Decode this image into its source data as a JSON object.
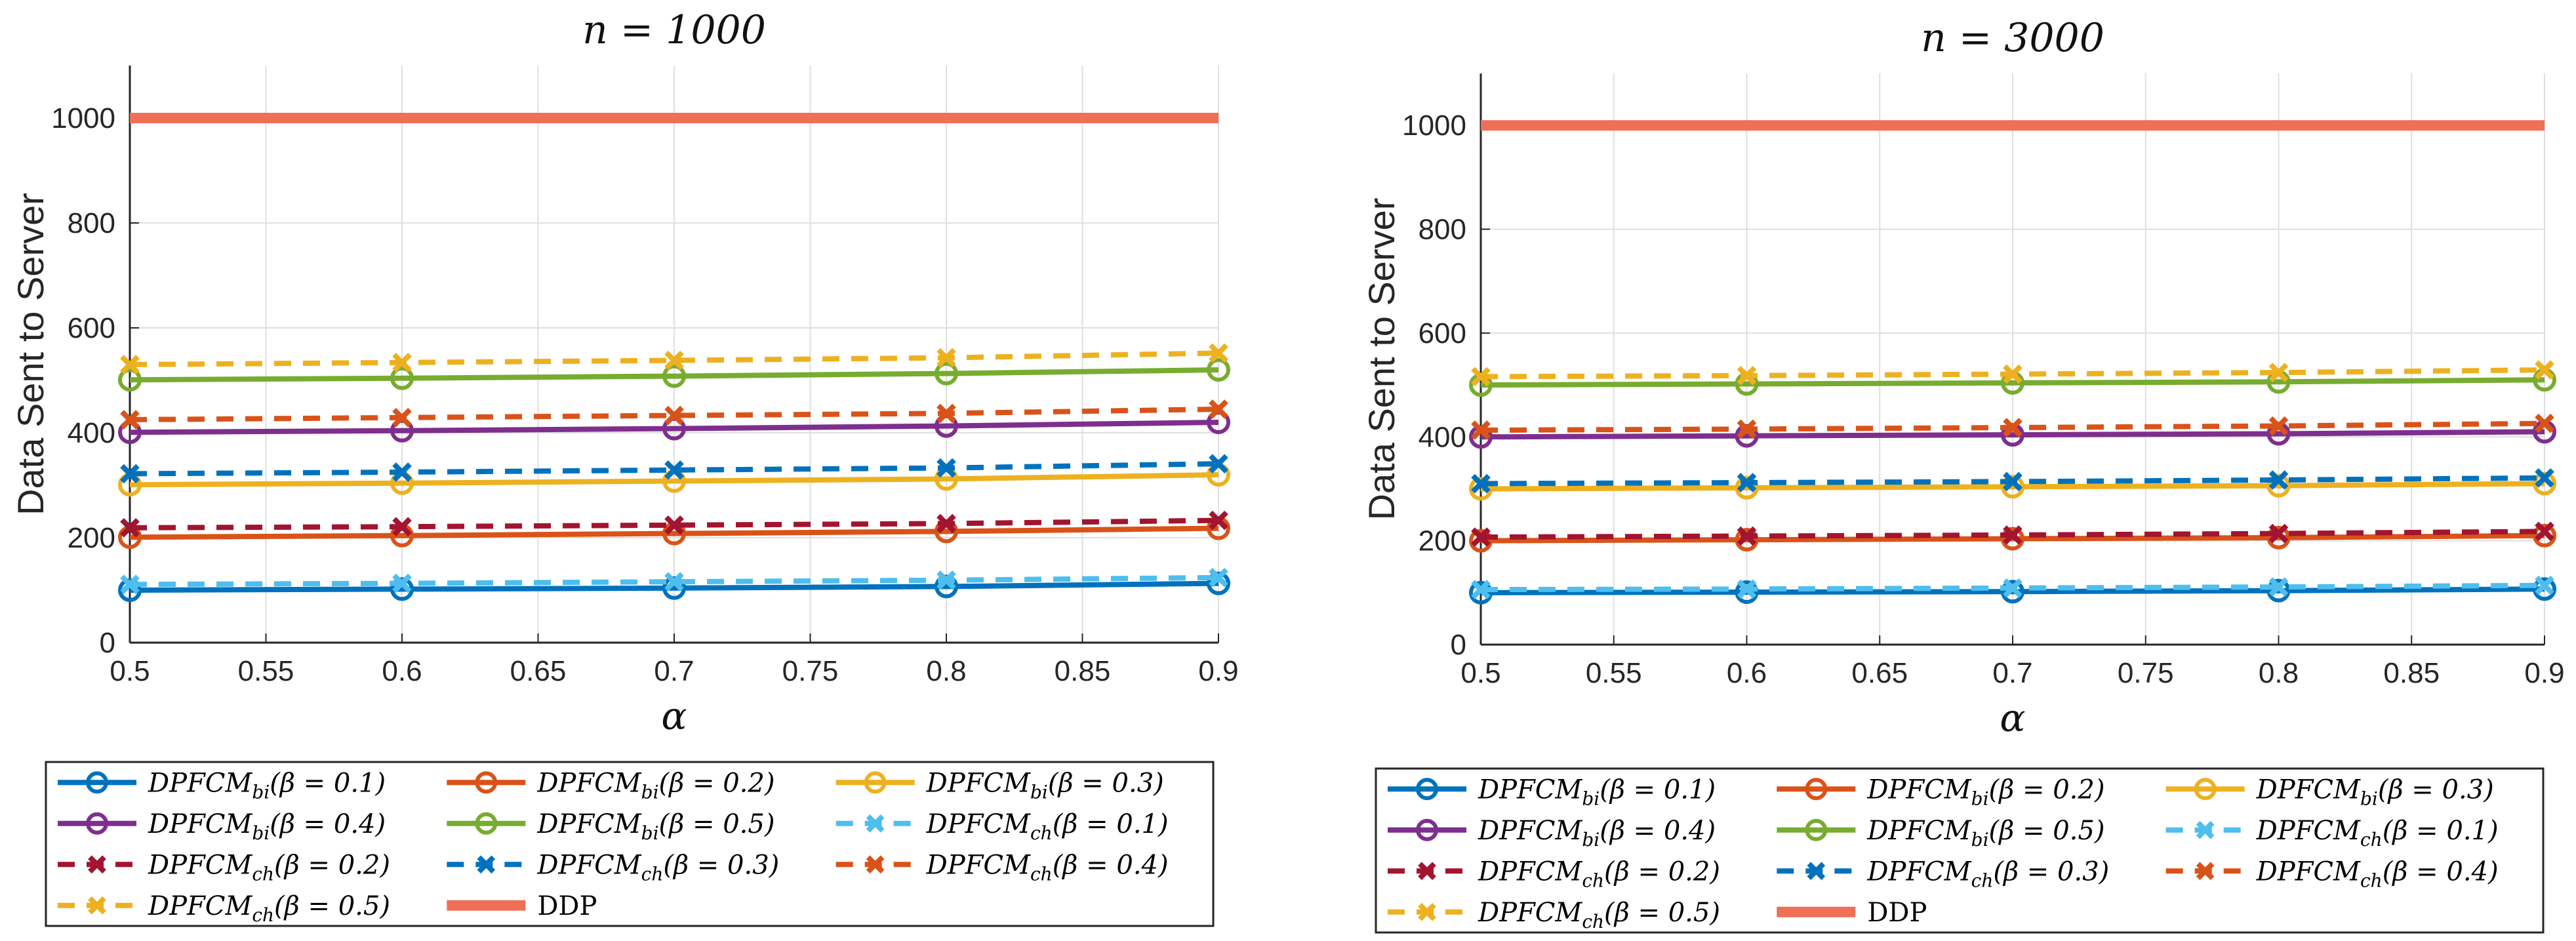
{
  "chart_data": [
    {
      "type": "line",
      "title": "n = 1000",
      "xlabel": "α",
      "ylabel": "Data Sent to Server",
      "xlim": [
        0.5,
        0.9
      ],
      "ylim": [
        0,
        1100
      ],
      "xticks": [
        "0.5",
        "0.55",
        "0.6",
        "0.65",
        "0.7",
        "0.75",
        "0.8",
        "0.85",
        "0.9"
      ],
      "yticks": [
        "0",
        "200",
        "400",
        "600",
        "800",
        "1000"
      ],
      "grid": true,
      "legend_position": "below",
      "x": [
        0.5,
        0.6,
        0.7,
        0.8,
        0.9
      ],
      "series": [
        {
          "name": "DPFCM_bi(β = 0.1)",
          "label_main": "DPFCM",
          "label_sub": "bi",
          "label_param": "(β = 0.1)",
          "color": "#0072BD",
          "style": "solid",
          "marker": "circle",
          "values": [
            100,
            102,
            104,
            107,
            113
          ]
        },
        {
          "name": "DPFCM_bi(β = 0.2)",
          "label_main": "DPFCM",
          "label_sub": "bi",
          "label_param": "(β = 0.2)",
          "color": "#D95319",
          "style": "solid",
          "marker": "circle",
          "values": [
            201,
            204,
            208,
            212,
            218
          ]
        },
        {
          "name": "DPFCM_bi(β = 0.3)",
          "label_main": "DPFCM",
          "label_sub": "bi",
          "label_param": "(β = 0.3)",
          "color": "#EDB120",
          "style": "solid",
          "marker": "circle",
          "values": [
            301,
            304,
            308,
            312,
            320
          ]
        },
        {
          "name": "DPFCM_bi(β = 0.4)",
          "label_main": "DPFCM",
          "label_sub": "bi",
          "label_param": "(β = 0.4)",
          "color": "#7E2F8E",
          "style": "solid",
          "marker": "circle",
          "values": [
            401,
            404,
            408,
            413,
            420
          ]
        },
        {
          "name": "DPFCM_bi(β = 0.5)",
          "label_main": "DPFCM",
          "label_sub": "bi",
          "label_param": "(β = 0.5)",
          "color": "#77AC30",
          "style": "solid",
          "marker": "circle",
          "values": [
            501,
            504,
            508,
            513,
            520
          ]
        },
        {
          "name": "DPFCM_ch(β = 0.1)",
          "label_main": "DPFCM",
          "label_sub": "ch",
          "label_param": "(β = 0.1)",
          "color": "#4DBEEE",
          "style": "dashed",
          "marker": "x",
          "values": [
            111,
            113,
            116,
            119,
            124
          ]
        },
        {
          "name": "DPFCM_ch(β = 0.2)",
          "label_main": "DPFCM",
          "label_sub": "ch",
          "label_param": "(β = 0.2)",
          "color": "#A2142F",
          "style": "dashed",
          "marker": "x",
          "values": [
            219,
            221,
            224,
            227,
            233
          ]
        },
        {
          "name": "DPFCM_ch(β = 0.3)",
          "label_main": "DPFCM",
          "label_sub": "ch",
          "label_param": "(β = 0.3)",
          "color": "#0072BD",
          "style": "dashed",
          "marker": "x",
          "values": [
            322,
            325,
            329,
            333,
            341
          ]
        },
        {
          "name": "DPFCM_ch(β = 0.4)",
          "label_main": "DPFCM",
          "label_sub": "ch",
          "label_param": "(β = 0.4)",
          "color": "#D95319",
          "style": "dashed",
          "marker": "x",
          "values": [
            425,
            429,
            433,
            437,
            445
          ]
        },
        {
          "name": "DPFCM_ch(β = 0.5)",
          "label_main": "DPFCM",
          "label_sub": "ch",
          "label_param": "(β = 0.5)",
          "color": "#EDB120",
          "style": "dashed",
          "marker": "x",
          "values": [
            530,
            534,
            538,
            543,
            552
          ]
        },
        {
          "name": "DDP",
          "label_main": "DDP",
          "label_sub": "",
          "label_param": "",
          "color": "#EF6F57",
          "style": "thick",
          "marker": "none",
          "values": [
            1000,
            1000,
            1000,
            1000,
            1000
          ]
        }
      ]
    },
    {
      "type": "line",
      "title": "n = 3000",
      "xlabel": "α",
      "ylabel": "Data Sent to Server",
      "xlim": [
        0.5,
        0.9
      ],
      "ylim": [
        0,
        1100
      ],
      "xticks": [
        "0.5",
        "0.55",
        "0.6",
        "0.65",
        "0.7",
        "0.75",
        "0.8",
        "0.85",
        "0.9"
      ],
      "yticks": [
        "0",
        "200",
        "400",
        "600",
        "800",
        "1000"
      ],
      "grid": true,
      "legend_position": "below",
      "x": [
        0.5,
        0.6,
        0.7,
        0.8,
        0.9
      ],
      "series": [
        {
          "name": "DPFCM_bi(β = 0.1)",
          "label_main": "DPFCM",
          "label_sub": "bi",
          "label_param": "(β = 0.1)",
          "color": "#0072BD",
          "style": "solid",
          "marker": "circle",
          "values": [
            100,
            101,
            102,
            104,
            107
          ]
        },
        {
          "name": "DPFCM_bi(β = 0.2)",
          "label_main": "DPFCM",
          "label_sub": "bi",
          "label_param": "(β = 0.2)",
          "color": "#D95319",
          "style": "solid",
          "marker": "circle",
          "values": [
            200,
            202,
            204,
            206,
            210
          ]
        },
        {
          "name": "DPFCM_bi(β = 0.3)",
          "label_main": "DPFCM",
          "label_sub": "bi",
          "label_param": "(β = 0.3)",
          "color": "#EDB120",
          "style": "solid",
          "marker": "circle",
          "values": [
            300,
            302,
            304,
            306,
            310
          ]
        },
        {
          "name": "DPFCM_bi(β = 0.4)",
          "label_main": "DPFCM",
          "label_sub": "bi",
          "label_param": "(β = 0.4)",
          "color": "#7E2F8E",
          "style": "solid",
          "marker": "circle",
          "values": [
            400,
            402,
            404,
            406,
            410
          ]
        },
        {
          "name": "DPFCM_bi(β = 0.5)",
          "label_main": "DPFCM",
          "label_sub": "bi",
          "label_param": "(β = 0.5)",
          "color": "#77AC30",
          "style": "solid",
          "marker": "circle",
          "values": [
            500,
            502,
            504,
            506,
            510
          ]
        },
        {
          "name": "DPFCM_ch(β = 0.1)",
          "label_main": "DPFCM",
          "label_sub": "ch",
          "label_param": "(β = 0.1)",
          "color": "#4DBEEE",
          "style": "dashed",
          "marker": "x",
          "values": [
            106,
            107,
            109,
            111,
            114
          ]
        },
        {
          "name": "DPFCM_ch(β = 0.2)",
          "label_main": "DPFCM",
          "label_sub": "ch",
          "label_param": "(β = 0.2)",
          "color": "#A2142F",
          "style": "dashed",
          "marker": "x",
          "values": [
            207,
            209,
            211,
            214,
            218
          ]
        },
        {
          "name": "DPFCM_ch(β = 0.3)",
          "label_main": "DPFCM",
          "label_sub": "ch",
          "label_param": "(β = 0.3)",
          "color": "#0072BD",
          "style": "dashed",
          "marker": "x",
          "values": [
            310,
            312,
            314,
            317,
            321
          ]
        },
        {
          "name": "DPFCM_ch(β = 0.4)",
          "label_main": "DPFCM",
          "label_sub": "ch",
          "label_param": "(β = 0.4)",
          "color": "#D95319",
          "style": "dashed",
          "marker": "x",
          "values": [
            413,
            415,
            418,
            421,
            426
          ]
        },
        {
          "name": "DPFCM_ch(β = 0.5)",
          "label_main": "DPFCM",
          "label_sub": "ch",
          "label_param": "(β = 0.5)",
          "color": "#EDB120",
          "style": "dashed",
          "marker": "x",
          "values": [
            516,
            518,
            521,
            524,
            529
          ]
        },
        {
          "name": "DDP",
          "label_main": "DDP",
          "label_sub": "",
          "label_param": "",
          "color": "#EF6F57",
          "style": "thick",
          "marker": "none",
          "values": [
            1000,
            1000,
            1000,
            1000,
            1000
          ]
        }
      ]
    }
  ]
}
